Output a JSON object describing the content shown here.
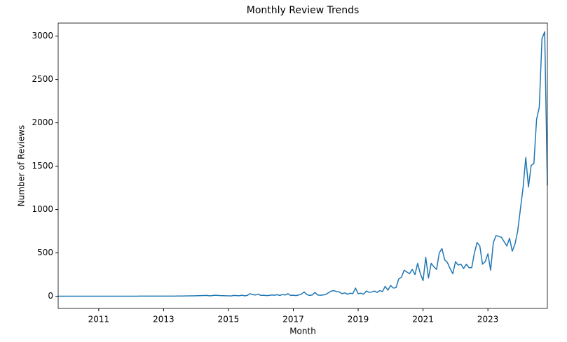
{
  "chart_data": {
    "type": "line",
    "title": "Monthly Review Trends",
    "x_label": "Month",
    "y_label": "Number of Reviews",
    "color": "#1f77b4",
    "xlim": [
      2009.75,
      2024.833
    ],
    "xticks": [
      2011,
      2013,
      2015,
      2017,
      2019,
      2021,
      2023
    ],
    "ylim": [
      -140,
      3150
    ],
    "yticks": [
      0,
      500,
      1000,
      1500,
      2000,
      2500,
      3000
    ],
    "x": [
      2009.75,
      2009.833,
      2009.917,
      2010,
      2010.083,
      2010.167,
      2010.25,
      2010.333,
      2010.417,
      2010.5,
      2010.583,
      2010.667,
      2010.75,
      2010.833,
      2010.917,
      2011,
      2011.083,
      2011.167,
      2011.25,
      2011.333,
      2011.417,
      2011.5,
      2011.583,
      2011.667,
      2011.75,
      2011.833,
      2011.917,
      2012,
      2012.083,
      2012.167,
      2012.25,
      2012.333,
      2012.417,
      2012.5,
      2012.583,
      2012.667,
      2012.75,
      2012.833,
      2012.917,
      2013,
      2013.083,
      2013.167,
      2013.25,
      2013.333,
      2013.417,
      2013.5,
      2013.583,
      2013.667,
      2013.75,
      2013.833,
      2013.917,
      2014,
      2014.083,
      2014.167,
      2014.25,
      2014.333,
      2014.417,
      2014.5,
      2014.583,
      2014.667,
      2014.75,
      2014.833,
      2014.917,
      2015,
      2015.083,
      2015.167,
      2015.25,
      2015.333,
      2015.417,
      2015.5,
      2015.583,
      2015.667,
      2015.75,
      2015.833,
      2015.917,
      2016,
      2016.083,
      2016.167,
      2016.25,
      2016.333,
      2016.417,
      2016.5,
      2016.583,
      2016.667,
      2016.75,
      2016.833,
      2016.917,
      2017,
      2017.083,
      2017.167,
      2017.25,
      2017.333,
      2017.417,
      2017.5,
      2017.583,
      2017.667,
      2017.75,
      2017.833,
      2017.917,
      2018,
      2018.083,
      2018.167,
      2018.25,
      2018.333,
      2018.417,
      2018.5,
      2018.583,
      2018.667,
      2018.75,
      2018.833,
      2018.917,
      2019,
      2019.083,
      2019.167,
      2019.25,
      2019.333,
      2019.417,
      2019.5,
      2019.583,
      2019.667,
      2019.75,
      2019.833,
      2019.917,
      2020,
      2020.083,
      2020.167,
      2020.25,
      2020.333,
      2020.417,
      2020.5,
      2020.583,
      2020.667,
      2020.75,
      2020.833,
      2020.917,
      2021,
      2021.083,
      2021.167,
      2021.25,
      2021.333,
      2021.417,
      2021.5,
      2021.583,
      2021.667,
      2021.75,
      2021.833,
      2021.917,
      2022,
      2022.083,
      2022.167,
      2022.25,
      2022.333,
      2022.417,
      2022.5,
      2022.583,
      2022.667,
      2022.75,
      2022.833,
      2022.917,
      2023,
      2023.083,
      2023.167,
      2023.25,
      2023.333,
      2023.417,
      2023.5,
      2023.583,
      2023.667,
      2023.75,
      2023.833,
      2023.917,
      2024,
      2024.083,
      2024.167,
      2024.25,
      2024.333,
      2024.417,
      2024.5,
      2024.583,
      2024.667,
      2024.75,
      2024.833
    ],
    "values": [
      1,
      1,
      1,
      1,
      1,
      1,
      1,
      1,
      1,
      1,
      1,
      1,
      1,
      1,
      1,
      1,
      1,
      1,
      1,
      1,
      1,
      1,
      1,
      1,
      1,
      1,
      1,
      1,
      1,
      1,
      2,
      2,
      2,
      2,
      2,
      2,
      2,
      2,
      2,
      2,
      2,
      2,
      2,
      2,
      3,
      3,
      3,
      4,
      4,
      5,
      5,
      6,
      7,
      8,
      9,
      10,
      5,
      8,
      12,
      10,
      8,
      7,
      6,
      5,
      4,
      10,
      8,
      6,
      12,
      5,
      10,
      30,
      18,
      15,
      25,
      10,
      12,
      8,
      10,
      15,
      12,
      18,
      10,
      20,
      15,
      30,
      10,
      12,
      8,
      15,
      25,
      50,
      20,
      10,
      15,
      45,
      15,
      12,
      15,
      20,
      40,
      60,
      65,
      55,
      50,
      30,
      40,
      25,
      35,
      30,
      95,
      30,
      35,
      25,
      60,
      45,
      50,
      60,
      45,
      65,
      55,
      115,
      70,
      125,
      95,
      100,
      200,
      220,
      300,
      280,
      260,
      310,
      250,
      380,
      260,
      180,
      450,
      210,
      380,
      340,
      310,
      500,
      550,
      420,
      390,
      320,
      260,
      400,
      360,
      370,
      320,
      370,
      330,
      330,
      500,
      620,
      580,
      370,
      400,
      490,
      300,
      620,
      700,
      690,
      680,
      630,
      580,
      670,
      520,
      600,
      750,
      1000,
      1250,
      1600,
      1260,
      1510,
      1530,
      2040,
      2180,
      2970,
      3050,
      1280
    ]
  }
}
